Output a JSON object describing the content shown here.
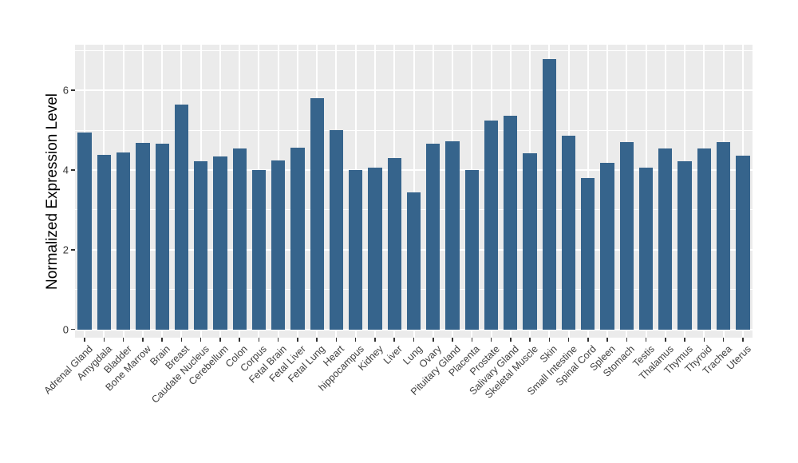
{
  "chart_data": {
    "type": "bar",
    "title": "",
    "xlabel": "",
    "ylabel": "Normalized Expression Level",
    "categories": [
      "Adrenal Gland",
      "Amygdala",
      "Bladder",
      "Bone Marrow",
      "Brain",
      "Breast",
      "Caudate Nucleus",
      "Cerebellum",
      "Colon",
      "Corpus",
      "Fetal Brain",
      "Fetal Liver",
      "Fetal Lung",
      "Heart",
      "hippocampus",
      "Kidney",
      "Liver",
      "Lung",
      "Ovary",
      "Pituitary Gland",
      "Placenta",
      "Prostate",
      "Salivary Gland",
      "Skeletal Muscle",
      "Skin",
      "Small Intestine",
      "Spinal Cord",
      "Spleen",
      "Stomach",
      "Testis",
      "Thalamus",
      "Thymus",
      "Thyroid",
      "Trachea",
      "Uterus"
    ],
    "values": [
      4.94,
      4.38,
      4.45,
      4.69,
      4.66,
      5.64,
      4.22,
      4.34,
      4.55,
      4.01,
      4.24,
      4.56,
      5.81,
      5.01,
      3.99,
      4.07,
      4.3,
      3.43,
      4.67,
      4.73,
      3.99,
      5.24,
      5.36,
      4.43,
      6.78,
      4.87,
      3.8,
      4.19,
      4.7,
      4.07,
      4.54,
      4.23,
      4.55,
      4.7,
      4.37
    ],
    "ytick_values": [
      0,
      2,
      4,
      6
    ],
    "ytick_labels": [
      "0",
      "2",
      "4",
      "6"
    ],
    "minor_grid_values": [
      1,
      3,
      5,
      7
    ],
    "ylim": [
      0,
      7.15
    ],
    "grid": "on",
    "legend": "none",
    "bar_color": "#36648C",
    "panel_background": "#EBEBEB",
    "gridline_color": "#FFFFFF",
    "tick_color": "#333333"
  }
}
